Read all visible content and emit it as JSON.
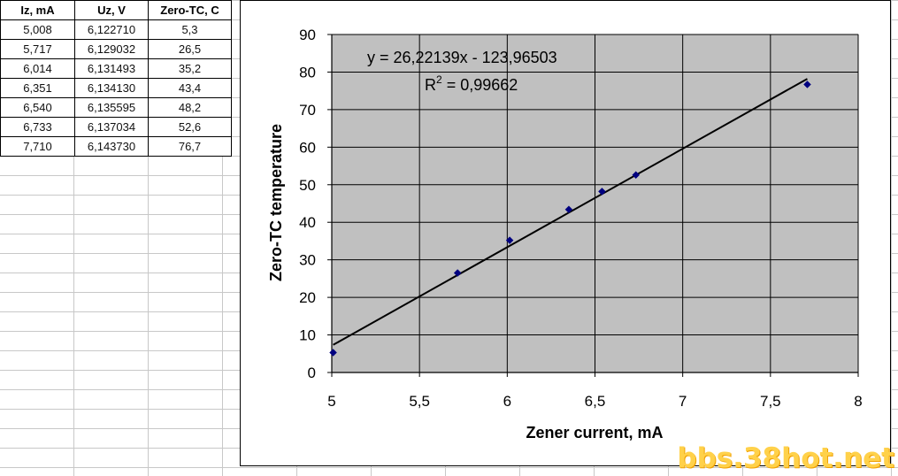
{
  "table": {
    "headers": [
      "Iz, mA",
      "Uz, V",
      "Zero-TC, C"
    ],
    "rows": [
      [
        "5,008",
        "6,122710",
        "5,3"
      ],
      [
        "5,717",
        "6,129032",
        "26,5"
      ],
      [
        "6,014",
        "6,131493",
        "35,2"
      ],
      [
        "6,351",
        "6,134130",
        "43,4"
      ],
      [
        "6,540",
        "6,135595",
        "48,2"
      ],
      [
        "6,733",
        "6,137034",
        "52,6"
      ],
      [
        "7,710",
        "6,143730",
        "76,7"
      ]
    ]
  },
  "chart_data": {
    "type": "scatter",
    "title": "",
    "xlabel": "Zener current, mA",
    "ylabel": "Zero-TC temperature",
    "xlim": [
      5,
      8
    ],
    "ylim": [
      0,
      90
    ],
    "x_ticks": [
      "5",
      "5,5",
      "6",
      "6,5",
      "7",
      "7,5",
      "8"
    ],
    "y_ticks": [
      "0",
      "10",
      "20",
      "30",
      "40",
      "50",
      "60",
      "70",
      "80",
      "90"
    ],
    "grid": true,
    "legend": "none",
    "plot_background": "#c0c0c0",
    "marker_color": "#000080",
    "series": [
      {
        "x": [
          5.008,
          5.717,
          6.014,
          6.351,
          6.54,
          6.733,
          7.71
        ],
        "y": [
          5.3,
          26.5,
          35.2,
          43.4,
          48.2,
          52.6,
          76.7
        ]
      }
    ],
    "trendline": {
      "slope": 26.22139,
      "intercept": -123.96503,
      "equation": "y = 26,22139x - 123,96503",
      "r2_label": "R",
      "r2_exponent": "2",
      "r2_value": " = 0,99662"
    }
  },
  "watermark": "bbs.38hot.net"
}
